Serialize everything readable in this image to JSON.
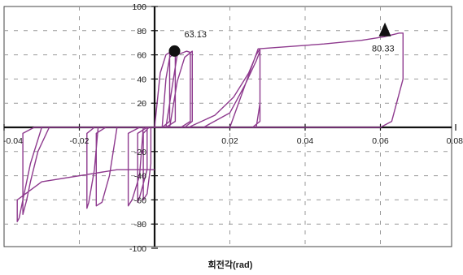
{
  "chart_data": {
    "type": "line",
    "xlabel": "회전각(rad)",
    "ylabel": "",
    "title": "",
    "xlim": [
      -0.04,
      0.08
    ],
    "ylim": [
      -100,
      100
    ],
    "x_ticks": [
      -0.04,
      -0.02,
      0,
      0.02,
      0.04,
      0.06,
      0.08
    ],
    "y_ticks": [
      -100,
      -80,
      -60,
      -40,
      -20,
      0,
      20,
      40,
      60,
      80,
      100
    ],
    "x_tick_labels": [
      "-0.04",
      "-0.02",
      "",
      "0.02",
      "0.04",
      "0.06",
      "0.08"
    ],
    "y_tick_labels": [
      "-100",
      "-80",
      "-60",
      "-40",
      "-20",
      "",
      "20",
      "40",
      "60",
      "80",
      "100"
    ],
    "grid": true,
    "series_color": "#8e3a8e",
    "marker_color": "#111111",
    "series": [
      {
        "values": [
          [
            0,
            0
          ],
          [
            0.0015,
            45
          ],
          [
            0.003,
            60
          ],
          [
            0.004,
            62
          ],
          [
            0.004,
            5
          ],
          [
            0.002,
            0
          ],
          [
            -0.001,
            0
          ],
          [
            -0.001,
            -30
          ],
          [
            -0.002,
            -55
          ],
          [
            -0.003,
            -60
          ],
          [
            -0.003,
            -5
          ],
          [
            -0.0015,
            0
          ],
          [
            0.002,
            0
          ],
          [
            0.003,
            40
          ],
          [
            0.004,
            58
          ],
          [
            0.0055,
            62
          ],
          [
            0.0055,
            5
          ],
          [
            0.003,
            0
          ],
          [
            -0.002,
            0
          ],
          [
            -0.002,
            -35
          ],
          [
            -0.004,
            -58
          ],
          [
            -0.0045,
            -62
          ],
          [
            -0.0045,
            -5
          ],
          [
            -0.002,
            0
          ],
          [
            0.003,
            0
          ],
          [
            0.005,
            40
          ],
          [
            0.006,
            60
          ],
          [
            0.0085,
            63
          ],
          [
            0.0095,
            62
          ],
          [
            0.0095,
            5
          ],
          [
            0.007,
            0
          ],
          [
            -0.003,
            0
          ],
          [
            -0.004,
            -40
          ],
          [
            -0.006,
            -60
          ],
          [
            -0.007,
            -65
          ],
          [
            -0.007,
            -5
          ],
          [
            -0.004,
            0
          ],
          [
            0.004,
            0
          ],
          [
            0.006,
            38
          ],
          [
            0.008,
            58
          ],
          [
            0.01,
            63
          ],
          [
            0.01,
            5
          ],
          [
            0.008,
            0
          ],
          [
            -0.01,
            0
          ],
          [
            -0.012,
            -40
          ],
          [
            -0.014,
            -62
          ],
          [
            -0.0155,
            -65
          ],
          [
            -0.0155,
            -5
          ],
          [
            -0.013,
            0
          ],
          [
            0.009,
            0
          ],
          [
            0.016,
            10
          ],
          [
            0.021,
            25
          ],
          [
            0.025,
            45
          ],
          [
            0.027,
            60
          ],
          [
            0.028,
            65
          ],
          [
            0.028,
            5
          ],
          [
            0.026,
            0
          ],
          [
            -0.015,
            0
          ],
          [
            -0.016,
            -35
          ],
          [
            -0.0175,
            -62
          ],
          [
            -0.018,
            -67
          ],
          [
            -0.018,
            -5
          ],
          [
            -0.016,
            0
          ],
          [
            0.013,
            0
          ],
          [
            0.02,
            12
          ],
          [
            0.024,
            35
          ],
          [
            0.027,
            55
          ],
          [
            0.028,
            63
          ],
          [
            0.028,
            20
          ],
          [
            0.027,
            0
          ],
          [
            -0.028,
            0
          ],
          [
            -0.031,
            -20
          ],
          [
            -0.033,
            -45
          ],
          [
            -0.034,
            -60
          ],
          [
            -0.035,
            -72
          ],
          [
            -0.035,
            -5
          ],
          [
            -0.032,
            0
          ],
          [
            0.02,
            0
          ],
          [
            0.0275,
            65
          ],
          [
            0.045,
            69
          ],
          [
            0.055,
            72
          ],
          [
            0.061,
            75
          ],
          [
            0.065,
            78
          ],
          [
            0.066,
            78
          ],
          [
            0.066,
            40
          ],
          [
            0.063,
            5
          ],
          [
            0.06,
            0
          ],
          [
            -0.03,
            0
          ],
          [
            -0.033,
            -30
          ],
          [
            -0.035,
            -60
          ],
          [
            -0.036,
            -75
          ],
          [
            -0.0365,
            -78
          ],
          [
            -0.0365,
            -60
          ],
          [
            -0.03,
            -45
          ],
          [
            -0.01,
            -35
          ],
          [
            0,
            -35
          ]
        ]
      }
    ],
    "annotations": [
      {
        "text": "63.13",
        "x": 0.0053,
        "y": 63.13,
        "marker": "circle"
      },
      {
        "text": "80.33",
        "x": 0.0612,
        "y": 80.33,
        "marker": "triangle"
      }
    ]
  }
}
